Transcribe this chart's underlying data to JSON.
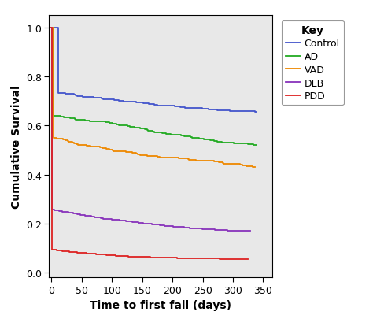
{
  "xlabel": "Time to first fall (days)",
  "ylabel": "Cumulative Survival",
  "xlim": [
    -5,
    365
  ],
  "ylim": [
    -0.02,
    1.05
  ],
  "xticks": [
    0,
    50,
    100,
    150,
    200,
    250,
    300,
    350
  ],
  "yticks": [
    0.0,
    0.2,
    0.4,
    0.6,
    0.8,
    1.0
  ],
  "plot_bg": "#e8e8e8",
  "fig_bg": "#ffffff",
  "legend_title": "Key",
  "curves": [
    {
      "label": "Control",
      "color": "#4455cc",
      "end_value": 0.655,
      "n_events": 160,
      "seed": 101
    },
    {
      "label": "AD",
      "color": "#22aa22",
      "end_value": 0.52,
      "n_events": 200,
      "seed": 202
    },
    {
      "label": "VAD",
      "color": "#ee8800",
      "end_value": 0.43,
      "n_events": 220,
      "seed": 303
    },
    {
      "label": "DLB",
      "color": "#8833bb",
      "end_value": 0.17,
      "n_events": 280,
      "seed": 404
    },
    {
      "label": "PDD",
      "color": "#dd2222",
      "end_value": 0.055,
      "n_events": 320,
      "seed": 505
    }
  ]
}
